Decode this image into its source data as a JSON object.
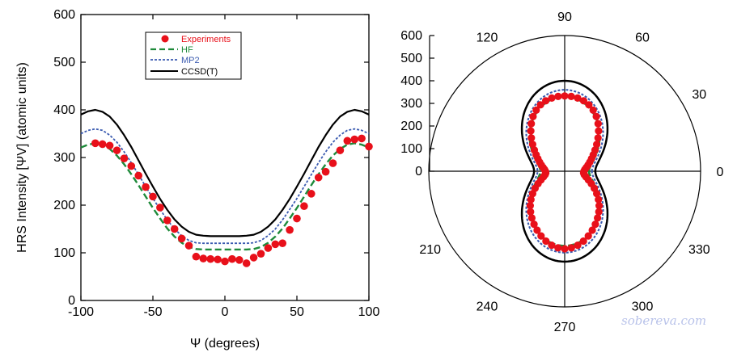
{
  "chart_data": [
    {
      "type": "line",
      "xlabel": "Ψ (degrees)",
      "ylabel": "HRS Intensity [ΨV] (atomic units)",
      "xlim": [
        -100,
        100
      ],
      "ylim": [
        0,
        600
      ],
      "x_ticks": [
        "-100",
        "-50",
        "0",
        "50",
        "100"
      ],
      "y_ticks": [
        "0",
        "100",
        "200",
        "300",
        "400",
        "500",
        "600"
      ],
      "grid": false,
      "legend_position": "top-center",
      "series": [
        {
          "name": "Experiments",
          "style": "markers",
          "color": "#e8101a",
          "x": [
            -90,
            -85,
            -80,
            -75,
            -70,
            -65,
            -60,
            -55,
            -50,
            -45,
            -40,
            -35,
            -30,
            -25,
            -20,
            -15,
            -10,
            -5,
            0,
            5,
            10,
            15,
            20,
            25,
            30,
            35,
            40,
            45,
            50,
            55,
            60,
            65,
            70,
            75,
            80,
            85,
            90,
            95,
            100
          ],
          "y": [
            330,
            328,
            325,
            315,
            298,
            282,
            262,
            238,
            218,
            195,
            168,
            150,
            130,
            115,
            92,
            88,
            87,
            86,
            82,
            87,
            85,
            78,
            90,
            98,
            110,
            118,
            120,
            148,
            172,
            198,
            224,
            258,
            270,
            288,
            315,
            335,
            338,
            340,
            323
          ]
        },
        {
          "name": "HF",
          "style": "dashed",
          "color": "#1e8a3a",
          "x": [
            -100,
            -95,
            -90,
            -85,
            -80,
            -75,
            -70,
            -65,
            -60,
            -55,
            -50,
            -45,
            -40,
            -35,
            -30,
            -25,
            -20,
            -15,
            -10,
            -5,
            0,
            5,
            10,
            15,
            20,
            25,
            30,
            35,
            40,
            45,
            50,
            55,
            60,
            65,
            70,
            75,
            80,
            85,
            90,
            95,
            100
          ],
          "y": [
            321,
            327,
            330,
            327,
            318,
            304,
            286,
            265,
            242,
            218,
            194,
            172,
            151,
            134,
            121,
            112,
            108,
            107,
            107,
            107,
            107,
            107,
            107,
            107,
            108,
            112,
            121,
            134,
            151,
            172,
            194,
            218,
            242,
            265,
            286,
            304,
            318,
            327,
            330,
            327,
            321
          ]
        },
        {
          "name": "MP2",
          "style": "dotted",
          "color": "#3b5bb0",
          "x": [
            -100,
            -95,
            -90,
            -85,
            -80,
            -75,
            -70,
            -65,
            -60,
            -55,
            -50,
            -45,
            -40,
            -35,
            -30,
            -25,
            -20,
            -15,
            -10,
            -5,
            0,
            5,
            10,
            15,
            20,
            25,
            30,
            35,
            40,
            45,
            50,
            55,
            60,
            65,
            70,
            75,
            80,
            85,
            90,
            95,
            100
          ],
          "y": [
            350,
            357,
            360,
            357,
            347,
            332,
            312,
            289,
            264,
            239,
            214,
            191,
            169,
            150,
            136,
            126,
            121,
            120,
            120,
            120,
            120,
            120,
            120,
            120,
            121,
            126,
            136,
            150,
            169,
            191,
            214,
            239,
            264,
            289,
            312,
            332,
            347,
            357,
            360,
            357,
            350
          ]
        },
        {
          "name": "CCSD(T)",
          "style": "solid",
          "color": "#000000",
          "x": [
            -100,
            -95,
            -90,
            -85,
            -80,
            -75,
            -70,
            -65,
            -60,
            -55,
            -50,
            -45,
            -40,
            -35,
            -30,
            -25,
            -20,
            -15,
            -10,
            -5,
            0,
            5,
            10,
            15,
            20,
            25,
            30,
            35,
            40,
            45,
            50,
            55,
            60,
            65,
            70,
            75,
            80,
            85,
            90,
            95,
            100
          ],
          "y": [
            390,
            397,
            400,
            396,
            386,
            369,
            347,
            322,
            294,
            266,
            239,
            213,
            190,
            170,
            155,
            144,
            138,
            136,
            135,
            135,
            135,
            135,
            135,
            136,
            138,
            144,
            155,
            170,
            190,
            213,
            239,
            266,
            294,
            322,
            347,
            369,
            386,
            396,
            400,
            397,
            390
          ]
        }
      ]
    },
    {
      "type": "polar",
      "angle_labels": [
        "0",
        "30",
        "60",
        "90",
        "120",
        "210",
        "240",
        "270",
        "300",
        "330"
      ],
      "radial_ticks": [
        "0",
        "100",
        "200",
        "300",
        "400",
        "500",
        "600"
      ],
      "rlim": [
        0,
        600
      ],
      "series": [
        {
          "name": "Experiments",
          "style": "markers",
          "color": "#e8101a"
        },
        {
          "name": "HF",
          "style": "dashed",
          "color": "#1e8a3a"
        },
        {
          "name": "MP2",
          "style": "dotted",
          "color": "#3b5bb0"
        },
        {
          "name": "CCSD(T)",
          "style": "solid",
          "color": "#000000"
        }
      ]
    }
  ],
  "watermark": "sobereva.com"
}
